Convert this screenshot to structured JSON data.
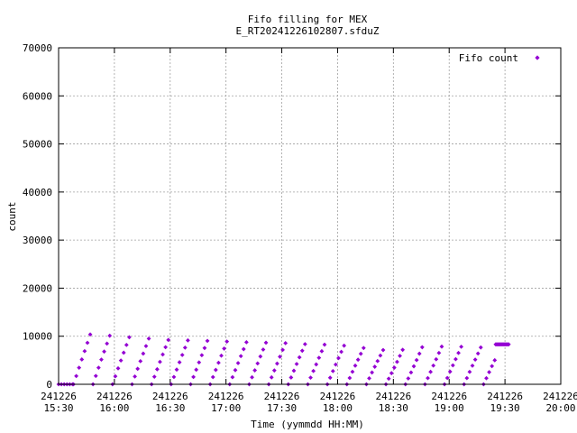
{
  "chart_data": {
    "type": "scatter",
    "title": "Fifo filling for MEX",
    "subtitle": "E_RT20241226102807.sfduZ",
    "xlabel": "Time (yymmdd HH:MM)",
    "ylabel": "count",
    "xlim": [
      "2024-12-26 15:30",
      "2024-12-26 20:00"
    ],
    "ylim": [
      0,
      70000
    ],
    "grid": true,
    "legend": {
      "position": "top-right"
    },
    "y_ticks": [
      0,
      10000,
      20000,
      30000,
      40000,
      50000,
      60000,
      70000
    ],
    "x_ticks": [
      {
        "date": "241226",
        "time": "15:30"
      },
      {
        "date": "241226",
        "time": "16:00"
      },
      {
        "date": "241226",
        "time": "16:30"
      },
      {
        "date": "241226",
        "time": "17:00"
      },
      {
        "date": "241226",
        "time": "17:30"
      },
      {
        "date": "241226",
        "time": "18:00"
      },
      {
        "date": "241226",
        "time": "18:30"
      },
      {
        "date": "241226",
        "time": "19:00"
      },
      {
        "date": "241226",
        "time": "19:30"
      },
      {
        "date": "241226",
        "time": "20:00"
      }
    ],
    "series": [
      {
        "name": "Fifo count",
        "color": "#9400d3",
        "marker": "diamond",
        "x_start": "2024-12-26 15:30",
        "sample_interval_minutes": 1.5,
        "pattern": "sawtooth from 0 to the envelope value, then drop back to 0",
        "segments": [
          {
            "from": "2024-12-26 15:30",
            "to": "2024-12-26 15:38",
            "value": 0
          },
          {
            "from": "2024-12-26 15:38",
            "to": "2024-12-26 19:25",
            "value": "sawtooth"
          },
          {
            "from": "2024-12-26 19:25",
            "to": "2024-12-26 19:32",
            "value": 8300
          }
        ],
        "envelope": [
          {
            "x": "2024-12-26 15:38",
            "y": 10300
          },
          {
            "x": "2024-12-26 15:50",
            "y": 10400
          },
          {
            "x": "2024-12-26 16:00",
            "y": 10000
          },
          {
            "x": "2024-12-26 16:15",
            "y": 9600
          },
          {
            "x": "2024-12-26 16:30",
            "y": 9200
          },
          {
            "x": "2024-12-26 16:45",
            "y": 9100
          },
          {
            "x": "2024-12-26 17:00",
            "y": 8900
          },
          {
            "x": "2024-12-26 17:15",
            "y": 8700
          },
          {
            "x": "2024-12-26 17:30",
            "y": 8600
          },
          {
            "x": "2024-12-26 17:45",
            "y": 8300
          },
          {
            "x": "2024-12-26 18:00",
            "y": 8200
          },
          {
            "x": "2024-12-26 18:15",
            "y": 7500
          },
          {
            "x": "2024-12-26 18:30",
            "y": 6900
          },
          {
            "x": "2024-12-26 18:45",
            "y": 7700
          },
          {
            "x": "2024-12-26 19:00",
            "y": 7900
          },
          {
            "x": "2024-12-26 19:15",
            "y": 7700
          },
          {
            "x": "2024-12-26 19:25",
            "y": 7500
          }
        ]
      }
    ]
  }
}
